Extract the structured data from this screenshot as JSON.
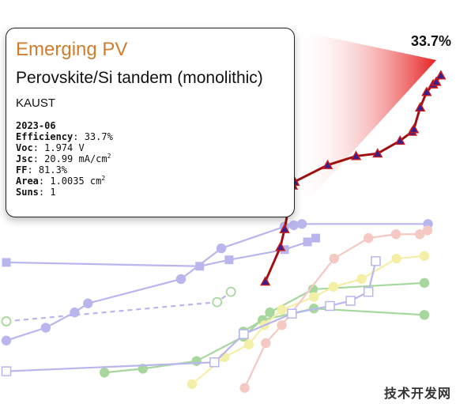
{
  "tooltip": {
    "category": "Emerging PV",
    "device": "Perovskite/Si tandem (monolithic)",
    "institution": "KAUST",
    "date": "2023-06",
    "efficiency_label": "Efficiency",
    "efficiency_value": "33.7%",
    "voc_label": "Voc",
    "voc_value": "1.974 V",
    "jsc_label": "Jsc",
    "jsc_value": "20.99 mA/cm",
    "jsc_unit_sup": "2",
    "ff_label": "FF",
    "ff_value": "81.3%",
    "area_label": "Area",
    "area_value": "1.0035 cm",
    "area_unit_sup": "2",
    "suns_label": "Suns",
    "suns_value": "1"
  },
  "peak_label": "33.7%",
  "watermark": "技术开发网",
  "colors": {
    "highlight_line": "#a01010",
    "highlight_marker": "#3a1e8c",
    "highlight_marker_edge": "#cc1a1a",
    "wedge": "#e62020",
    "purple": "#b9b6ee",
    "green": "#a7d79c",
    "yellow": "#f3efa6",
    "pink": "#f4c9c4"
  },
  "chart_data": {
    "type": "line",
    "title": "",
    "xlabel": "",
    "ylabel": "",
    "highlight_point": {
      "label": "33.7%",
      "y": 33.7
    },
    "series": [
      {
        "color": "highlight",
        "marker": "triangle",
        "values": [
          {
            "x": 0.565,
            "y": 17.6
          },
          {
            "x": 0.598,
            "y": 20.3
          },
          {
            "x": 0.607,
            "y": 21.7
          },
          {
            "x": 0.625,
            "y": 25.1
          },
          {
            "x": 0.629,
            "y": 25.4
          },
          {
            "x": 0.701,
            "y": 26.7
          },
          {
            "x": 0.763,
            "y": 27.4
          },
          {
            "x": 0.81,
            "y": 27.6
          },
          {
            "x": 0.859,
            "y": 28.6
          },
          {
            "x": 0.885,
            "y": 29.3
          },
          {
            "x": 0.889,
            "y": 29.5
          },
          {
            "x": 0.903,
            "y": 31.2
          },
          {
            "x": 0.917,
            "y": 32.4
          },
          {
            "x": 0.931,
            "y": 33.0
          },
          {
            "x": 0.938,
            "y": 33.2
          },
          {
            "x": 0.948,
            "y": 33.7
          }
        ]
      },
      {
        "color": "purple",
        "marker": "circle",
        "values": [
          {
            "x": 0.0,
            "y": 13.0
          },
          {
            "x": 0.086,
            "y": 14.0
          },
          {
            "x": 0.149,
            "y": 15.2
          },
          {
            "x": 0.178,
            "y": 15.9
          },
          {
            "x": 0.381,
            "y": 17.8
          },
          {
            "x": 0.469,
            "y": 20.2
          },
          {
            "x": 0.607,
            "y": 21.9
          },
          {
            "x": 0.627,
            "y": 22.0
          },
          {
            "x": 0.645,
            "y": 22.1
          },
          {
            "x": 0.92,
            "y": 22.1
          }
        ]
      },
      {
        "color": "purple",
        "marker": "square",
        "values": [
          {
            "x": 0.0,
            "y": 19.1
          },
          {
            "x": 0.422,
            "y": 18.8
          },
          {
            "x": 0.486,
            "y": 19.3
          },
          {
            "x": 0.607,
            "y": 20.1
          },
          {
            "x": 0.657,
            "y": 20.7
          },
          {
            "x": 0.675,
            "y": 21.0
          }
        ]
      },
      {
        "color": "purple",
        "marker": "circle-dashed",
        "dashed": true,
        "values": [
          {
            "x": 0.0,
            "y": 14.5
          },
          {
            "x": 0.46,
            "y": 16.0
          },
          {
            "x": 0.49,
            "y": 16.8
          }
        ]
      },
      {
        "color": "green",
        "marker": "circle",
        "values": [
          {
            "x": 0.214,
            "y": 10.5
          },
          {
            "x": 0.298,
            "y": 10.8
          },
          {
            "x": 0.415,
            "y": 11.4
          },
          {
            "x": 0.517,
            "y": 13.3
          },
          {
            "x": 0.575,
            "y": 15.2
          },
          {
            "x": 0.669,
            "y": 17.0
          },
          {
            "x": 0.912,
            "y": 17.5
          }
        ]
      },
      {
        "color": "green",
        "marker": "circle",
        "values": [
          {
            "x": 0.517,
            "y": 13.7
          },
          {
            "x": 0.559,
            "y": 14.6
          },
          {
            "x": 0.671,
            "y": 15.5
          },
          {
            "x": 0.912,
            "y": 15.0
          }
        ]
      },
      {
        "color": "yellow",
        "marker": "circle",
        "values": [
          {
            "x": 0.405,
            "y": 9.6
          },
          {
            "x": 0.476,
            "y": 11.7
          },
          {
            "x": 0.529,
            "y": 12.7
          },
          {
            "x": 0.563,
            "y": 14.2
          },
          {
            "x": 0.601,
            "y": 15.4
          },
          {
            "x": 0.671,
            "y": 16.4
          },
          {
            "x": 0.714,
            "y": 17.2
          },
          {
            "x": 0.775,
            "y": 17.8
          },
          {
            "x": 0.851,
            "y": 19.4
          },
          {
            "x": 0.912,
            "y": 19.6
          }
        ]
      },
      {
        "color": "pink",
        "marker": "circle",
        "values": [
          {
            "x": 0.52,
            "y": 9.3
          },
          {
            "x": 0.566,
            "y": 12.8
          },
          {
            "x": 0.601,
            "y": 14.2
          },
          {
            "x": 0.715,
            "y": 19.4
          },
          {
            "x": 0.79,
            "y": 21.0
          },
          {
            "x": 0.85,
            "y": 21.3
          },
          {
            "x": 0.902,
            "y": 21.3
          },
          {
            "x": 0.919,
            "y": 21.6
          }
        ]
      },
      {
        "color": "purple",
        "marker": "square-open",
        "values": [
          {
            "x": 0.0,
            "y": 10.6
          },
          {
            "x": 0.454,
            "y": 11.3
          },
          {
            "x": 0.518,
            "y": 13.5
          },
          {
            "x": 0.623,
            "y": 15.1
          },
          {
            "x": 0.706,
            "y": 15.7
          },
          {
            "x": 0.751,
            "y": 16.1
          },
          {
            "x": 0.79,
            "y": 16.8
          },
          {
            "x": 0.806,
            "y": 19.2
          }
        ]
      }
    ]
  }
}
